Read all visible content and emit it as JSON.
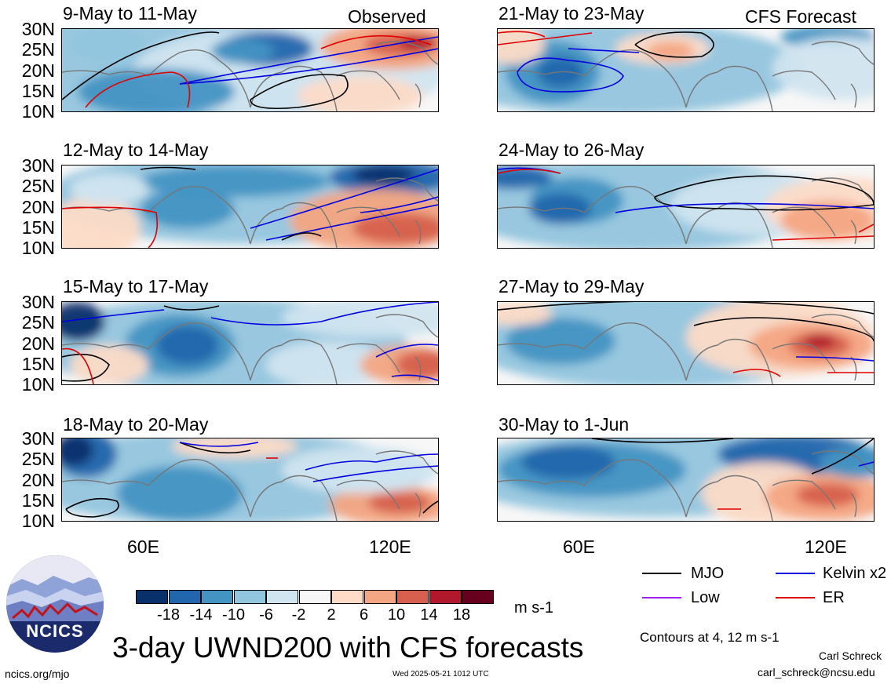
{
  "left_header": "Observed",
  "right_header": "CFS Forecast",
  "lat_labels": [
    "30N",
    "25N",
    "20N",
    "15N",
    "10N"
  ],
  "lon_labels": [
    "60E",
    "120E"
  ],
  "panels": [
    {
      "title": "9-May to 11-May"
    },
    {
      "title": "12-May to 14-May"
    },
    {
      "title": "15-May to 17-May"
    },
    {
      "title": "18-May to 20-May"
    },
    {
      "title": "21-May to 23-May"
    },
    {
      "title": "24-May to 26-May"
    },
    {
      "title": "27-May to 29-May"
    },
    {
      "title": "30-May to 1-Jun"
    }
  ],
  "colorbar": {
    "ticks": [
      "-18",
      "-14",
      "-10",
      "-6",
      "-2",
      "2",
      "6",
      "10",
      "14",
      "18"
    ],
    "colors": [
      "#08306b",
      "#2166ac",
      "#4393c3",
      "#92c5de",
      "#d1e5f0",
      "#f7f7f7",
      "#fddbc7",
      "#f4a582",
      "#d6604d",
      "#b2182b",
      "#67001f"
    ],
    "units": "m s-1"
  },
  "main_title": "3-day UWND200 with CFS forecasts",
  "legend": {
    "items": [
      {
        "label": "MJO",
        "color": "#000000"
      },
      {
        "label": "Kelvin x2",
        "color": "#0000e0"
      },
      {
        "label": "Low",
        "color": "#a020f0"
      },
      {
        "label": "ER",
        "color": "#e00000"
      }
    ],
    "contours_note": "Contours at 4, 12 m s-1"
  },
  "logo_text": "NCICS",
  "author": "Carl Schreck",
  "email": "carl_schreck@ncsu.edu",
  "site": "ncics.org/mjo",
  "timestamp": "Wed 2025-05-21 1012 UTC"
}
